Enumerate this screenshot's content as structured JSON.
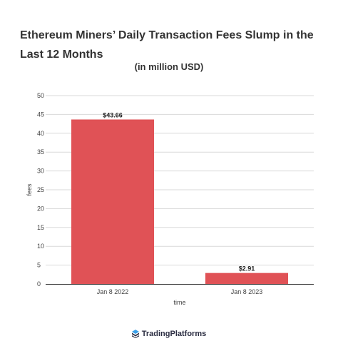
{
  "chart_data": {
    "type": "bar",
    "title": "Ethereum Miners’ Daily Transaction Fees Slump in the Last 12 Months",
    "subtitle": "(in million USD)",
    "categories": [
      "Jan 8 2022",
      "Jan 8 2023"
    ],
    "values": [
      43.66,
      2.91
    ],
    "data_labels": [
      "$43.66",
      "$2.91"
    ],
    "xlabel": "time",
    "ylabel": "fees",
    "ylim": [
      0,
      50
    ],
    "yticks": [
      0,
      5,
      10,
      15,
      20,
      25,
      30,
      35,
      40,
      45,
      50
    ],
    "grid": true,
    "legend": "none",
    "bar_color": "#e05256"
  },
  "branding": {
    "logo_text": "TradingPlatforms",
    "logo_icon": "trading-platforms-logo-icon"
  }
}
